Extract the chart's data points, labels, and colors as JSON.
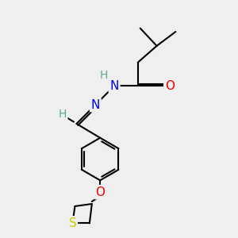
{
  "bg_color": "#efefef",
  "atom_colors": {
    "C": "#000000",
    "H": "#5fa89a",
    "N": "#0000ee",
    "O": "#ee0000",
    "S": "#cccc00"
  },
  "bond_color": "#000000",
  "bond_width": 1.5,
  "fig_w": 3.0,
  "fig_h": 3.0,
  "dpi": 100,
  "xlim": [
    0,
    10
  ],
  "ylim": [
    0,
    10
  ]
}
